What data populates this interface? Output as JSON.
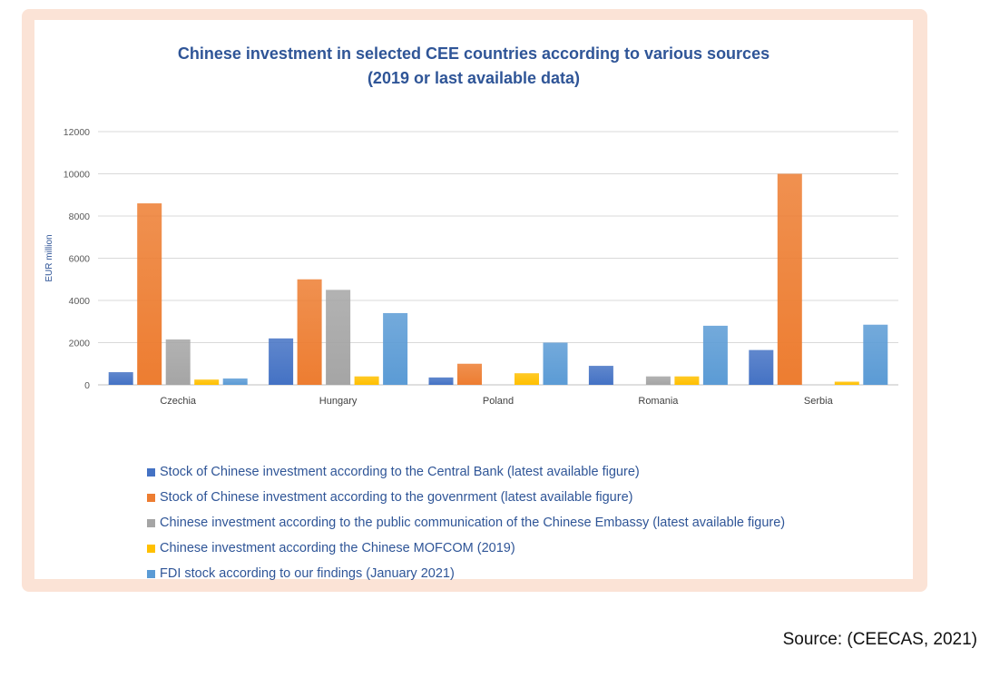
{
  "source": "Source: (CEECAS, 2021)",
  "chart_data": {
    "type": "bar",
    "title": [
      "Chinese investment in selected CEE countries according to various sources",
      "(2019 or last available data)"
    ],
    "xlabel": "",
    "ylabel": "EUR million",
    "ylim": [
      0,
      12000
    ],
    "yticks": [
      0,
      2000,
      4000,
      6000,
      8000,
      10000,
      12000
    ],
    "grid": true,
    "legend_position": "bottom",
    "categories": [
      "Czechia",
      "Hungary",
      "Poland",
      "Romania",
      "Serbia"
    ],
    "series": [
      {
        "name": "Stock of Chinese investment according to the Central Bank (latest available figure)",
        "color": "#4472c4",
        "values": [
          600,
          2200,
          350,
          900,
          1650
        ]
      },
      {
        "name": "Stock of Chinese investment according to the govenrment (latest available figure)",
        "color": "#ed7d31",
        "values": [
          8600,
          5000,
          1000,
          null,
          10000
        ]
      },
      {
        "name": "Chinese investment according to the public communication of the Chinese Embassy (latest available figure)",
        "color": "#a5a5a5",
        "values": [
          2150,
          4500,
          null,
          400,
          null
        ]
      },
      {
        "name": "Chinese investment according the Chinese MOFCOM (2019)",
        "color": "#ffc000",
        "values": [
          250,
          400,
          550,
          400,
          150
        ]
      },
      {
        "name": "FDI stock according to our findings (January 2021)",
        "color": "#5b9bd5",
        "values": [
          300,
          3400,
          2000,
          2800,
          2850
        ]
      }
    ]
  }
}
